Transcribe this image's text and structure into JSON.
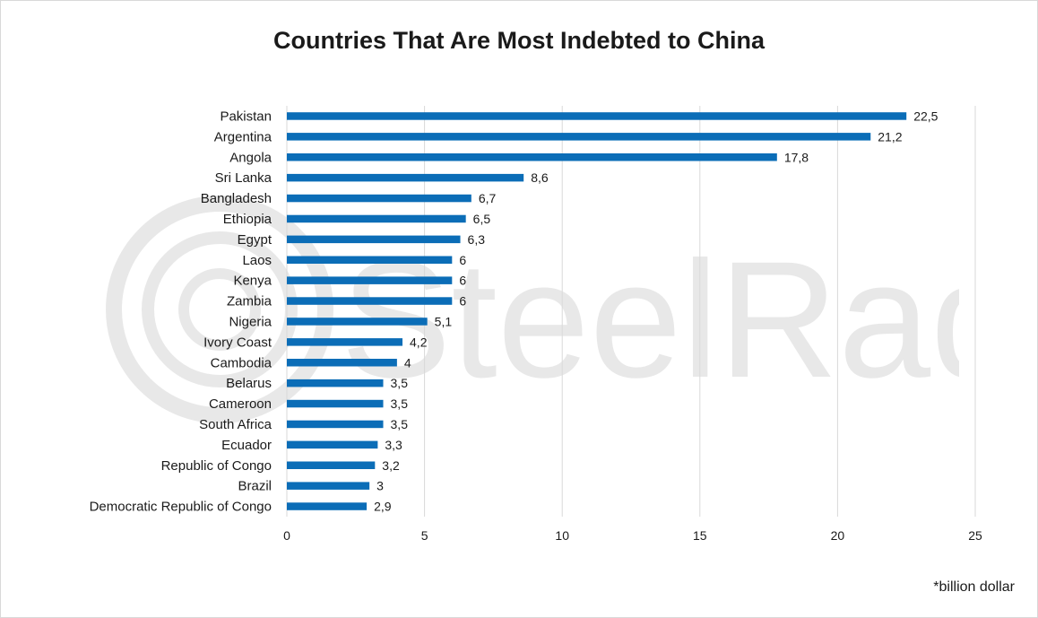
{
  "chart_data": {
    "type": "bar",
    "orientation": "horizontal",
    "title": "Countries That Are Most Indebted to China",
    "footnote": "*billion dollar",
    "categories": [
      "Pakistan",
      "Argentina",
      "Angola",
      "Sri Lanka",
      "Bangladesh",
      "Ethiopia",
      "Egypt",
      "Laos",
      "Kenya",
      "Zambia",
      "Nigeria",
      "Ivory Coast",
      "Cambodia",
      "Belarus",
      "Cameroon",
      "South Africa",
      "Ecuador",
      "Republic of Congo",
      "Brazil",
      "Democratic Republic of Congo"
    ],
    "values": [
      22.5,
      21.2,
      17.8,
      8.6,
      6.7,
      6.5,
      6.3,
      6,
      6,
      6,
      5.1,
      4.2,
      4,
      3.5,
      3.5,
      3.5,
      3.3,
      3.2,
      3,
      2.9
    ],
    "value_labels": [
      "22,5",
      "21,2",
      "17,8",
      "8,6",
      "6,7",
      "6,5",
      "6,3",
      "6",
      "6",
      "6",
      "5,1",
      "4,2",
      "4",
      "3,5",
      "3,5",
      "3,5",
      "3,3",
      "3,2",
      "3",
      "2,9"
    ],
    "xticks": [
      "0",
      "5",
      "10",
      "15",
      "20",
      "25"
    ],
    "xlim": [
      0,
      25
    ],
    "grid": true,
    "bar_color": "#0b6db7",
    "grid_color": "#d9d9d9"
  },
  "watermark": {
    "text": "SteelRadar",
    "icon": "steelradar-logo-icon"
  }
}
